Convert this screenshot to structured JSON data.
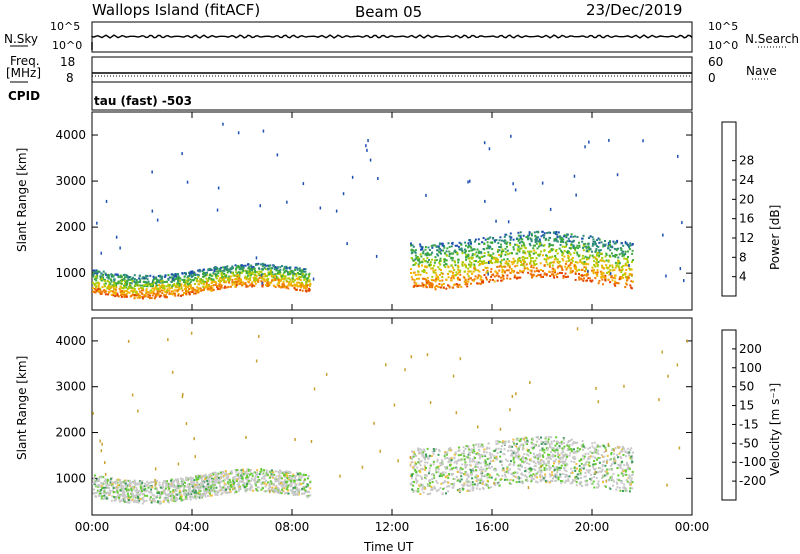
{
  "header": {
    "station": "Wallops Island (fitACF)",
    "beam": "Beam 05",
    "date": "23/Dec/2019"
  },
  "panels": {
    "nsky": {
      "label": "N.Sky",
      "ticks_left": [
        "10^5",
        "10^0"
      ],
      "ticks_right": [
        "10^5",
        "10^0"
      ],
      "right_label": "N.Search"
    },
    "freq": {
      "label_line1": "Freq.",
      "label_line2": "[MHz]",
      "ticks_left": [
        "18",
        "8"
      ],
      "ticks_right": [
        "60",
        "0"
      ],
      "right_label": "Nave"
    },
    "cpid": {
      "label": "CPID",
      "mode": "tau (fast) -503"
    }
  },
  "chart_data": [
    {
      "type": "heatmap",
      "name": "power",
      "ylabel": "Slant Range [km]",
      "xlabel": "Time UT",
      "xlim_hours": [
        0,
        24
      ],
      "ylim": [
        200,
        4500
      ],
      "y_ticks": [
        "1000",
        "2000",
        "3000",
        "4000"
      ],
      "x_ticks": [
        "00:00",
        "04:00",
        "08:00",
        "12:00",
        "16:00",
        "20:00",
        "00:00"
      ],
      "colorbar": {
        "label": "Power [dB]",
        "ticks": [
          "4",
          "8",
          "12",
          "16",
          "20",
          "24",
          "28"
        ],
        "colors": [
          "#0000ff",
          "#1d4fb0",
          "#2e8b7a",
          "#3caa3c",
          "#aacc00",
          "#f0b400",
          "#f07800",
          "#e04000",
          "#d00000"
        ]
      },
      "regions": [
        {
          "t_start": 0.0,
          "t_end": 8.7,
          "range_low": 600,
          "range_high": 1100,
          "dominant": "12-20 dB"
        },
        {
          "t_start": 12.7,
          "t_end": 21.6,
          "range_low": 800,
          "range_high": 1800,
          "dominant": "16-24 dB"
        }
      ]
    },
    {
      "type": "heatmap",
      "name": "velocity",
      "ylabel": "Slant Range [km]",
      "xlabel": "Time UT",
      "xlim_hours": [
        0,
        24
      ],
      "ylim": [
        200,
        4500
      ],
      "y_ticks": [
        "1000",
        "2000",
        "3000",
        "4000"
      ],
      "x_ticks": [
        "00:00",
        "04:00",
        "08:00",
        "12:00",
        "16:00",
        "20:00",
        "00:00"
      ],
      "colorbar": {
        "label": "Velocity [m s⁻¹]",
        "ticks": [
          "200",
          "100",
          "50",
          "15",
          "-15",
          "-50",
          "-100",
          "-200"
        ],
        "colors": [
          "#1e3cc8",
          "#2e6e9a",
          "#3c9a5a",
          "#66cc33",
          "#c8c8c8",
          "#f0c040",
          "#f08020",
          "#f05010",
          "#e00000"
        ]
      },
      "regions": [
        {
          "t_start": 0.0,
          "t_end": 8.7,
          "range_low": 600,
          "range_high": 1100,
          "dominant": "ground scatter / 50-100 m/s"
        },
        {
          "t_start": 12.7,
          "t_end": 21.6,
          "range_low": 800,
          "range_high": 1800,
          "dominant": "ground scatter"
        }
      ]
    }
  ]
}
